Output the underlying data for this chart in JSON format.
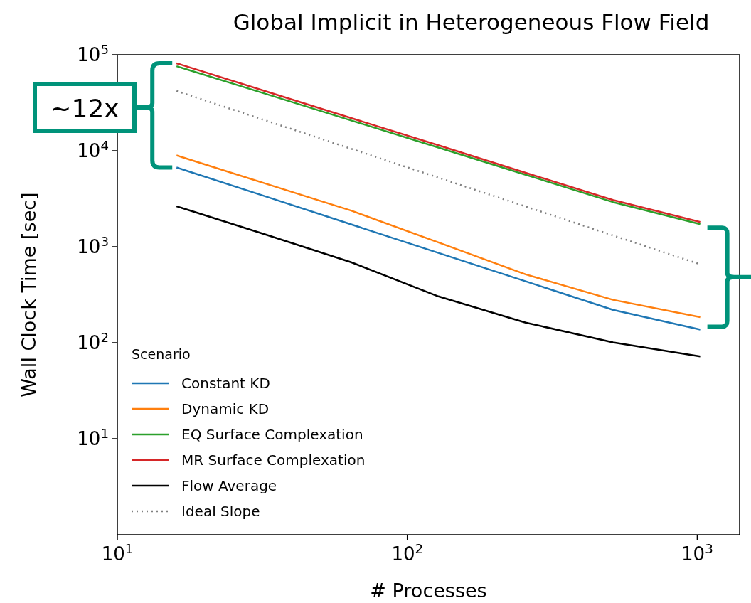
{
  "chart_data": {
    "type": "line",
    "title": "Global Implicit in Heterogeneous Flow Field",
    "xlabel": "# Processes",
    "ylabel": "Wall Clock Time [sec]",
    "legend_title": "Scenario",
    "legend": "bottom left",
    "log": "xy",
    "grid": false,
    "x": [
      16,
      32,
      64,
      128,
      256,
      512,
      1024
    ],
    "xlim": [
      10,
      1400
    ],
    "xticks": [
      {
        "value": 10,
        "label": "10$^{1}$"
      },
      {
        "value": 100,
        "label": "10$^{2}$"
      },
      {
        "value": 1000,
        "label": "10$^{3}$"
      }
    ],
    "ylim": [
      1,
      100000
    ],
    "yticks": [
      {
        "value": 10,
        "label": "10$^{1}$"
      },
      {
        "value": 100,
        "label": "10$^{2}$"
      },
      {
        "value": 1000,
        "label": "10$^{3}$"
      },
      {
        "value": 10000,
        "label": "10$^{4}$"
      },
      {
        "value": 100000,
        "label": "10$^{5}$"
      }
    ],
    "series": [
      {
        "name": "Constant KD",
        "color": "#1f77b4",
        "values": [
          6700,
          3390,
          1710,
          863,
          436,
          220,
          137
        ]
      },
      {
        "name": "Dynamic KD",
        "color": "#ff7f0e",
        "values": [
          8950,
          4610,
          2380,
          1110,
          515,
          280,
          185
        ]
      },
      {
        "name": "EQ Surface Complexation",
        "color": "#2ca02c",
        "values": [
          76000,
          39700,
          20700,
          10800,
          5620,
          2920,
          1720
        ]
      },
      {
        "name": "MR Surface Complexation",
        "color": "#d62728",
        "values": [
          81500,
          42300,
          21900,
          11400,
          5900,
          3070,
          1810
        ]
      },
      {
        "name": "Flow Average",
        "color": "#000000",
        "values": [
          2640,
          1360,
          690,
          304,
          162,
          101,
          72
        ]
      },
      {
        "name": "Ideal Slope",
        "color": "#808080",
        "line_style": "dotted",
        "values": [
          42000,
          21000,
          10500,
          5250,
          2625,
          1312.5,
          656
        ]
      }
    ],
    "annotations": [
      "~12x"
    ]
  }
}
